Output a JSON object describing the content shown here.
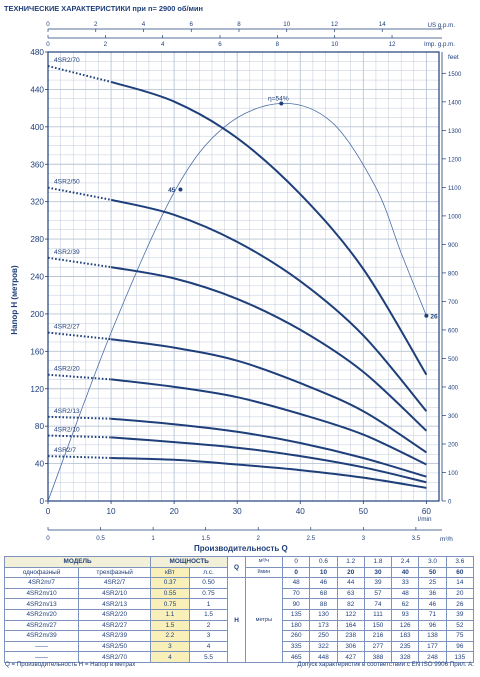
{
  "chart_data": {
    "type": "line",
    "title": "ТЕХНИЧЕСКИЕ ХАРАКТЕРИСТИКИ при n= 2900 об/мин",
    "xlabel": "Производительность Q",
    "xunit_lmin": "l/min",
    "xunit_m3h": "m³/h",
    "ylabel": "Напор H (метров)",
    "yunit_right": "feet",
    "usgpm_label": "US g.p.m.",
    "impgpm_label": "Imp. g.p.m.",
    "xlim": [
      0,
      62
    ],
    "ylim": [
      0,
      480
    ],
    "x_ticks": [
      "0",
      "10",
      "20",
      "30",
      "40",
      "50",
      "60"
    ],
    "y_ticks": [
      "0",
      "40",
      "80",
      "120",
      "160",
      "200",
      "240",
      "280",
      "320",
      "360",
      "400",
      "440",
      "480"
    ],
    "feet_ticks": [
      "0",
      "100",
      "200",
      "300",
      "400",
      "500",
      "600",
      "700",
      "800",
      "900",
      "1000",
      "1100",
      "1200",
      "1300",
      "1400",
      "1500"
    ],
    "m3h_ticks": [
      "0",
      "0.5",
      "1",
      "1.5",
      "2",
      "2.5",
      "3",
      "3.5"
    ],
    "usgpm_ticks": [
      "0",
      "2",
      "4",
      "6",
      "8",
      "10",
      "12",
      "14"
    ],
    "impgpm_ticks": [
      "0",
      "2",
      "4",
      "6",
      "8",
      "10",
      "12"
    ],
    "grid": true,
    "x": [
      0,
      10,
      20,
      30,
      40,
      50,
      60
    ],
    "series": [
      {
        "name": "4SR2/70",
        "values": [
          465,
          448,
          427,
          388,
          328,
          248,
          135
        ]
      },
      {
        "name": "4SR2/50",
        "values": [
          335,
          322,
          306,
          277,
          235,
          177,
          96
        ]
      },
      {
        "name": "4SR2/39",
        "values": [
          260,
          250,
          238,
          216,
          183,
          138,
          75
        ]
      },
      {
        "name": "4SR2/27",
        "values": [
          180,
          173,
          164,
          150,
          126,
          96,
          52
        ]
      },
      {
        "name": "4SR2/20",
        "values": [
          135,
          130,
          122,
          111,
          93,
          71,
          39
        ]
      },
      {
        "name": "4SR2/13",
        "values": [
          90,
          88,
          82,
          74,
          62,
          46,
          26
        ]
      },
      {
        "name": "4SR2/10",
        "values": [
          70,
          68,
          63,
          57,
          48,
          36,
          20
        ]
      },
      {
        "name": "4SR2/7",
        "values": [
          48,
          46,
          44,
          39,
          33,
          25,
          14
        ]
      }
    ],
    "efficiency_curve": {
      "label": "η=54%",
      "x": [
        0,
        10,
        20,
        28,
        37,
        45,
        52,
        56,
        60
      ],
      "values": [
        0,
        180,
        330,
        400,
        425,
        405,
        335,
        265,
        198
      ]
    },
    "markers": [
      {
        "label": "45",
        "x": 21,
        "y": 333
      },
      {
        "label": "26",
        "x": 60,
        "y": 198
      }
    ]
  },
  "table": {
    "model_label": "МОДЕЛЬ",
    "single_phase_label": "однофазный",
    "three_phase_label": "трехфазный",
    "power_label": "МОЩНОСТЬ",
    "kw_label": "кВт",
    "hp_label": "л.с.",
    "q_label": "Q",
    "m3h_label": "м³/ч",
    "lmin_label": "l/мин",
    "h_label": "H",
    "h_unit": "метры",
    "m3h_values": [
      "0",
      "0.6",
      "1.2",
      "1.8",
      "2.4",
      "3.0",
      "3.6"
    ],
    "lmin_values": [
      "0",
      "10",
      "20",
      "30",
      "40",
      "50",
      "60"
    ],
    "rows": [
      {
        "single": "4SR2m/7",
        "three": "4SR2/7",
        "kw": "0.37",
        "hp": "0.50",
        "h": [
          "48",
          "46",
          "44",
          "39",
          "33",
          "25",
          "14"
        ]
      },
      {
        "single": "4SR2m/10",
        "three": "4SR2/10",
        "kw": "0.55",
        "hp": "0.75",
        "h": [
          "70",
          "68",
          "63",
          "57",
          "48",
          "36",
          "20"
        ]
      },
      {
        "single": "4SR2m/13",
        "three": "4SR2/13",
        "kw": "0.75",
        "hp": "1",
        "h": [
          "90",
          "88",
          "82",
          "74",
          "62",
          "46",
          "26"
        ]
      },
      {
        "single": "4SR2m/20",
        "three": "4SR2/20",
        "kw": "1.1",
        "hp": "1.5",
        "h": [
          "135",
          "130",
          "122",
          "111",
          "93",
          "71",
          "39"
        ]
      },
      {
        "single": "4SR2m/27",
        "three": "4SR2/27",
        "kw": "1.5",
        "hp": "2",
        "h": [
          "180",
          "173",
          "164",
          "150",
          "126",
          "96",
          "52"
        ]
      },
      {
        "single": "4SR2m/39",
        "three": "4SR2/39",
        "kw": "2.2",
        "hp": "3",
        "h": [
          "260",
          "250",
          "238",
          "216",
          "183",
          "138",
          "75"
        ]
      },
      {
        "single": "——",
        "three": "4SR2/50",
        "kw": "3",
        "hp": "4",
        "h": [
          "335",
          "322",
          "306",
          "277",
          "235",
          "177",
          "96"
        ]
      },
      {
        "single": "——",
        "three": "4SR2/70",
        "kw": "4",
        "hp": "5.5",
        "h": [
          "465",
          "448",
          "427",
          "388",
          "328",
          "248",
          "135"
        ]
      }
    ]
  },
  "footnotes": {
    "legend": "Q = Производительность   H = Напор в метрах",
    "tolerance": "Допуск характеристик в соответствии с EN ISO 9906 Прил.  A."
  },
  "colors": {
    "curve": "#1f3f7a",
    "grid": "#b9c4d6",
    "efficiency": "#4c6fa8",
    "table_highlight": "#f8f0b8"
  }
}
